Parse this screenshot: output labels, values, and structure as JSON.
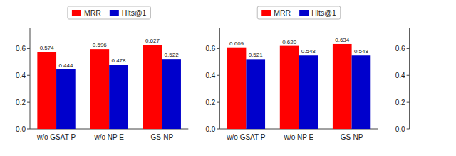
{
  "chart_data": [
    {
      "type": "bar",
      "categories": [
        "w/o GSAT P",
        "w/o NP E",
        "GS-NP"
      ],
      "series": [
        {
          "name": "MRR",
          "color": "#ff0000",
          "values": [
            0.574,
            0.596,
            0.627
          ]
        },
        {
          "name": "Hits@1",
          "color": "#0000cc",
          "values": [
            0.444,
            0.478,
            0.522
          ]
        }
      ],
      "ylim": [
        0,
        0.75
      ],
      "yticks": [
        {
          "value": 0.0,
          "label": "0.0"
        },
        0.2,
        0.4,
        0.6
      ],
      "data_labels": true,
      "legend": "top"
    },
    {
      "type": "bar",
      "categories": [
        "w/o GSAT P",
        "w/o NP E",
        "GS-NP"
      ],
      "series": [
        {
          "name": "MRR",
          "color": "#ff0000",
          "values": [
            0.609,
            0.62,
            0.634
          ],
          "value_labels": [
            "0.609",
            "0.620",
            "0.634"
          ]
        },
        {
          "name": "Hits@1",
          "color": "#0000cc",
          "values": [
            0.521,
            0.548,
            0.548
          ]
        }
      ],
      "ylim": [
        0,
        0.75
      ],
      "yticks": [
        {
          "value": 0.0,
          "label": "0.0"
        },
        0.2,
        0.4,
        0.6
      ],
      "data_labels": true,
      "legend": "top"
    },
    {
      "type": "bar",
      "categories": [],
      "series": [],
      "ylim": [
        0,
        0.75
      ],
      "yticks": [
        {
          "value": 0.0,
          "label": "0.0"
        },
        0.2,
        0.4,
        0.6
      ],
      "tick_labels": "y"
    }
  ]
}
